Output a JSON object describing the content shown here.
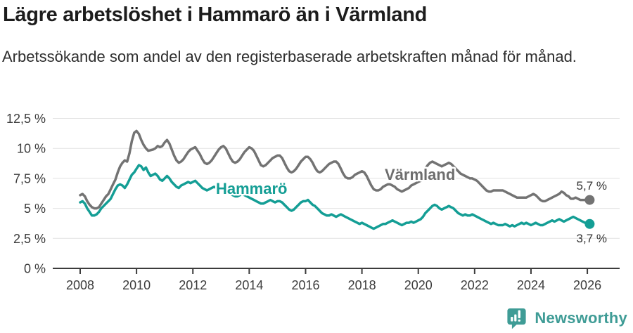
{
  "header": {
    "title": "Lägre arbetslöshet i Hammarö än i Värmland",
    "subtitle": "Arbetssökande som andel av den registerbaserade arbetskraften månad för månad."
  },
  "chart_data": {
    "type": "line",
    "title": "Lägre arbetslöshet i Hammarö än i Värmland",
    "subtitle": "Arbetssökande som andel av den registerbaserade arbetskraften månad för månad.",
    "x_start_year": 2008,
    "x_months_per_point": 1,
    "x_tick_years": [
      2008,
      2010,
      2012,
      2014,
      2016,
      2018,
      2020,
      2022,
      2024,
      2026
    ],
    "x_tick_labels": [
      "2008",
      "2010",
      "2012",
      "2014",
      "2016",
      "2018",
      "2020",
      "2022",
      "2024",
      "2026"
    ],
    "y_ticks": [
      0,
      2.5,
      5,
      7.5,
      10,
      12.5
    ],
    "y_tick_labels": [
      "0 %",
      "2,5 %",
      "5 %",
      "7,5 %",
      "10 %",
      "12,5 %"
    ],
    "ylim": [
      0,
      12.5
    ],
    "grid": "horizontal",
    "legend_position": "inline-labels",
    "series": [
      {
        "name": "Värmland",
        "color": "#737373",
        "label_color": "#6e6e6e",
        "end_label": "5,7 %",
        "end_value": 5.7,
        "values": [
          6.1,
          6.2,
          6.0,
          5.6,
          5.3,
          5.1,
          5.0,
          5.0,
          5.1,
          5.4,
          5.7,
          6.0,
          6.2,
          6.6,
          7.0,
          7.4,
          8.0,
          8.5,
          8.8,
          9.0,
          8.9,
          9.6,
          10.6,
          11.3,
          11.45,
          11.2,
          10.7,
          10.3,
          10.0,
          9.8,
          9.85,
          9.9,
          10.0,
          10.2,
          10.1,
          10.2,
          10.5,
          10.7,
          10.4,
          9.9,
          9.4,
          9.0,
          8.8,
          8.9,
          9.1,
          9.4,
          9.7,
          9.9,
          10.0,
          10.1,
          9.8,
          9.5,
          9.1,
          8.8,
          8.7,
          8.8,
          9.0,
          9.3,
          9.6,
          9.9,
          10.1,
          10.2,
          10.0,
          9.6,
          9.2,
          8.9,
          8.8,
          8.9,
          9.1,
          9.4,
          9.7,
          9.9,
          10.1,
          10.0,
          9.8,
          9.4,
          9.0,
          8.6,
          8.5,
          8.6,
          8.8,
          9.0,
          9.2,
          9.3,
          9.4,
          9.4,
          9.2,
          8.8,
          8.4,
          8.1,
          8.0,
          8.1,
          8.3,
          8.6,
          8.9,
          9.1,
          9.3,
          9.3,
          9.1,
          8.8,
          8.4,
          8.1,
          8.0,
          8.1,
          8.3,
          8.5,
          8.7,
          8.8,
          8.9,
          8.9,
          8.7,
          8.3,
          7.9,
          7.6,
          7.5,
          7.5,
          7.6,
          7.8,
          7.9,
          8.0,
          8.1,
          8.0,
          7.7,
          7.3,
          6.9,
          6.6,
          6.5,
          6.5,
          6.6,
          6.8,
          6.9,
          7.0,
          7.0,
          6.9,
          6.8,
          6.6,
          6.5,
          6.4,
          6.5,
          6.6,
          6.7,
          6.9,
          7.0,
          7.1,
          7.2,
          7.3,
          7.7,
          8.3,
          8.6,
          8.8,
          8.9,
          8.8,
          8.7,
          8.6,
          8.5,
          8.6,
          8.7,
          8.8,
          8.7,
          8.5,
          8.3,
          8.1,
          7.9,
          7.8,
          7.7,
          7.6,
          7.5,
          7.5,
          7.4,
          7.3,
          7.1,
          6.9,
          6.7,
          6.5,
          6.4,
          6.4,
          6.5,
          6.5,
          6.5,
          6.5,
          6.5,
          6.4,
          6.3,
          6.2,
          6.1,
          6.0,
          5.9,
          5.9,
          5.9,
          5.9,
          5.9,
          6.0,
          6.1,
          6.2,
          6.1,
          5.9,
          5.7,
          5.6,
          5.6,
          5.7,
          5.8,
          5.9,
          6.0,
          6.1,
          6.2,
          6.4,
          6.3,
          6.1,
          6.0,
          5.8,
          5.8,
          5.9,
          5.8,
          5.7,
          5.7,
          5.7,
          5.8,
          5.7
        ]
      },
      {
        "name": "Hammarö",
        "color": "#149e95",
        "label_color": "#149e95",
        "end_label": "3,7 %",
        "end_value": 3.7,
        "values": [
          5.5,
          5.6,
          5.4,
          5.0,
          4.7,
          4.4,
          4.4,
          4.5,
          4.7,
          5.0,
          5.2,
          5.4,
          5.6,
          5.8,
          6.2,
          6.6,
          6.9,
          7.0,
          6.9,
          6.7,
          7.0,
          7.4,
          7.8,
          8.0,
          8.3,
          8.6,
          8.5,
          8.2,
          8.4,
          8.0,
          7.7,
          7.8,
          7.9,
          7.7,
          7.4,
          7.3,
          7.5,
          7.7,
          7.5,
          7.2,
          7.0,
          6.8,
          6.7,
          6.9,
          7.0,
          7.1,
          7.2,
          7.1,
          7.2,
          7.3,
          7.1,
          6.9,
          6.7,
          6.6,
          6.5,
          6.6,
          6.7,
          6.8,
          6.7,
          6.6,
          6.6,
          6.5,
          6.4,
          6.3,
          6.2,
          6.1,
          6.0,
          6.0,
          6.1,
          6.2,
          6.1,
          6.0,
          5.9,
          5.8,
          5.7,
          5.6,
          5.5,
          5.4,
          5.4,
          5.5,
          5.6,
          5.7,
          5.6,
          5.5,
          5.6,
          5.6,
          5.5,
          5.3,
          5.1,
          4.9,
          4.8,
          4.9,
          5.1,
          5.3,
          5.5,
          5.6,
          5.6,
          5.7,
          5.5,
          5.3,
          5.2,
          5.0,
          4.8,
          4.6,
          4.5,
          4.4,
          4.4,
          4.5,
          4.4,
          4.3,
          4.4,
          4.5,
          4.4,
          4.3,
          4.2,
          4.1,
          4.0,
          3.9,
          3.8,
          3.7,
          3.8,
          3.7,
          3.6,
          3.5,
          3.4,
          3.3,
          3.4,
          3.5,
          3.6,
          3.7,
          3.7,
          3.8,
          3.9,
          4.0,
          3.9,
          3.8,
          3.7,
          3.6,
          3.7,
          3.8,
          3.8,
          3.9,
          3.8,
          3.9,
          4.0,
          4.1,
          4.3,
          4.6,
          4.8,
          5.0,
          5.2,
          5.3,
          5.2,
          5.0,
          4.9,
          5.0,
          5.1,
          5.2,
          5.1,
          5.0,
          4.8,
          4.6,
          4.5,
          4.4,
          4.5,
          4.4,
          4.4,
          4.5,
          4.4,
          4.3,
          4.2,
          4.1,
          4.0,
          3.9,
          3.8,
          3.7,
          3.8,
          3.7,
          3.6,
          3.6,
          3.6,
          3.7,
          3.6,
          3.5,
          3.6,
          3.5,
          3.6,
          3.7,
          3.8,
          3.7,
          3.8,
          3.7,
          3.6,
          3.7,
          3.8,
          3.7,
          3.6,
          3.6,
          3.7,
          3.8,
          3.9,
          4.0,
          3.9,
          4.0,
          4.1,
          4.0,
          3.9,
          4.0,
          4.1,
          4.2,
          4.3,
          4.2,
          4.1,
          4.0,
          3.9,
          3.8,
          3.8,
          3.7
        ]
      }
    ]
  },
  "footer": {
    "brand": "Newsworthy",
    "brand_color": "#3f9c96"
  }
}
